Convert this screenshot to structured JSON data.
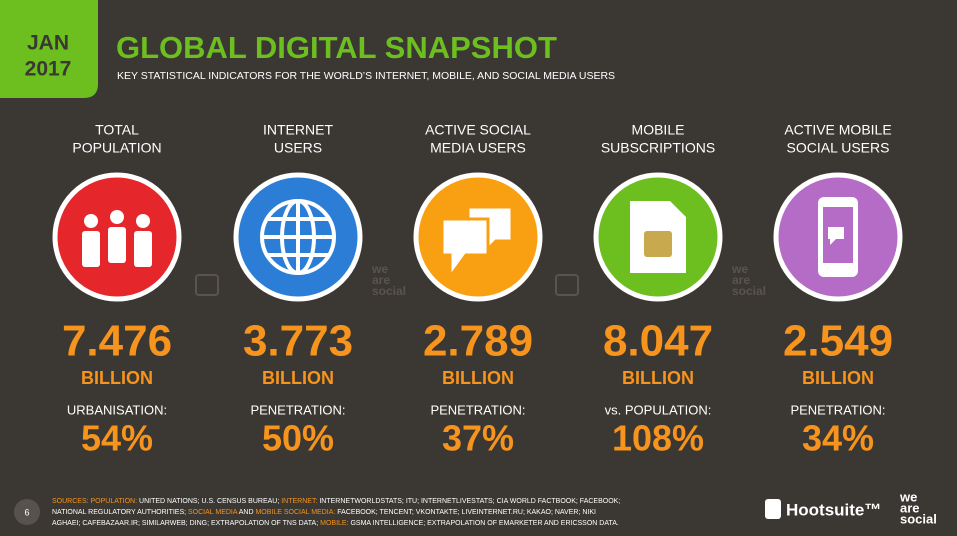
{
  "header": {
    "badge": [
      "JAN",
      "2017"
    ],
    "title": "GLOBAL DIGITAL SNAPSHOT",
    "subtitle": "KEY STATISTICAL INDICATORS FOR THE WORLD’S INTERNET, MOBILE, AND SOCIAL MEDIA USERS"
  },
  "columns": [
    {
      "label": [
        "TOTAL",
        "POPULATION"
      ],
      "color": "#e5262a",
      "value": "7.476",
      "unit": "BILLION",
      "sublabel": "URBANISATION:",
      "percent": "54%"
    },
    {
      "label": [
        "INTERNET",
        "USERS"
      ],
      "color": "#2c7dd6",
      "value": "3.773",
      "unit": "BILLION",
      "sublabel": "PENETRATION:",
      "percent": "50%"
    },
    {
      "label": [
        "ACTIVE SOCIAL",
        "MEDIA USERS"
      ],
      "color": "#f9a012",
      "value": "2.789",
      "unit": "BILLION",
      "sublabel": "PENETRATION:",
      "percent": "37%"
    },
    {
      "label": [
        "MOBILE",
        "SUBSCRIPTIONS"
      ],
      "color": "#6cbf1e",
      "value": "8.047",
      "unit": "BILLION",
      "sublabel": "vs. POPULATION:",
      "percent": "108%"
    },
    {
      "label": [
        "ACTIVE MOBILE",
        "SOCIAL USERS"
      ],
      "color": "#b56cc6",
      "value": "2.549",
      "unit": "BILLION",
      "sublabel": "PENETRATION:",
      "percent": "34%"
    }
  ],
  "watermark": [
    "we",
    "are",
    "social"
  ],
  "footer": {
    "page": "6",
    "sources": [
      [
        {
          "text": "SOURCES: POPULATION:",
          "color": "#f7941d"
        },
        {
          "text": " UNITED NATIONS; U.S. CENSUS BUREAU; ",
          "color": "#ffffff"
        },
        {
          "text": "INTERNET:",
          "color": "#f7941d"
        },
        {
          "text": " INTERNETWORLDSTATS; ITU; INTERNETLIVESTATS; CIA WORLD FACTBOOK; FACEBOOK;",
          "color": "#ffffff"
        }
      ],
      [
        {
          "text": "NATIONAL REGULATORY AUTHORITIES; ",
          "color": "#ffffff"
        },
        {
          "text": "SOCIAL MEDIA",
          "color": "#f7941d"
        },
        {
          "text": " AND ",
          "color": "#ffffff"
        },
        {
          "text": "MOBILE SOCIAL MEDIA:",
          "color": "#f7941d"
        },
        {
          "text": " FACEBOOK; TENCENT; VKONTAKTE; LIVEINTERNET.RU; KAKAO; NAVER; NIKI",
          "color": "#ffffff"
        }
      ],
      [
        {
          "text": "AGHAEI; CAFEBAZAAR.IR; SIMILARWEB; DING; EXTRAPOLATION OF TNS DATA; ",
          "color": "#ffffff"
        },
        {
          "text": "MOBILE:",
          "color": "#f7941d"
        },
        {
          "text": " GSMA INTELLIGENCE; EXTRAPOLATION OF EMARKETER AND ERICSSON DATA.",
          "color": "#ffffff"
        }
      ]
    ],
    "hootsuite": "Hootsuite™"
  }
}
